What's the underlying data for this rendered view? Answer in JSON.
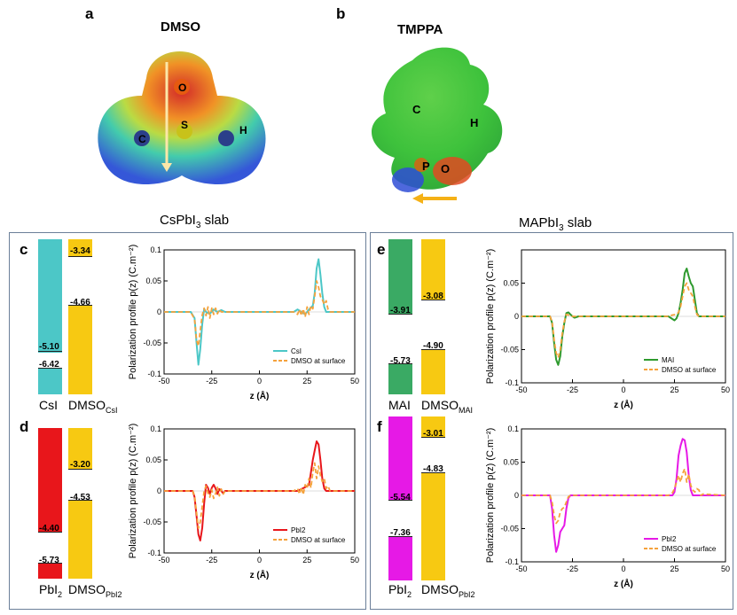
{
  "molecules": {
    "a": {
      "letter": "a",
      "title": "DMSO",
      "atoms": [
        "O",
        "S",
        "C",
        "H"
      ]
    },
    "b": {
      "letter": "b",
      "title": "TMPPA",
      "atoms": [
        "C",
        "H",
        "P",
        "O"
      ]
    }
  },
  "slabs": {
    "left": {
      "title_main": "CsPbI",
      "title_sub": "3",
      "title_tail": " slab"
    },
    "right": {
      "title_main": "MAPbI",
      "title_sub": "3",
      "title_tail": " slab"
    }
  },
  "colors": {
    "csi": "#4cc7c7",
    "dmso": "#f7c912",
    "pbi2_red": "#e8161b",
    "mai": "#3aaa64",
    "pbi2_magenta": "#e619e6",
    "frame": "#6b7f99",
    "orange_dash": "#f5a23c"
  },
  "panels": [
    {
      "letter": "c",
      "bars": {
        "left_label": "CsI",
        "right_label": "DMSO",
        "right_sub": "CsI",
        "left_values": [
          "-5.10",
          "-6.42"
        ],
        "right_values": [
          "-3.34",
          "-4.66"
        ]
      },
      "legend": [
        "CsI",
        "DMSO at surface"
      ]
    },
    {
      "letter": "d",
      "bars": {
        "left_label": "PbI",
        "left_sub": "2",
        "right_label": "DMSO",
        "right_sub": "PbI2",
        "left_values": [
          "-4.40",
          "-5.73"
        ],
        "right_values": [
          "-3.20",
          "-4.53"
        ]
      },
      "legend": [
        "PbI2",
        "DMSO at surface"
      ]
    },
    {
      "letter": "e",
      "bars": {
        "left_label": "MAI",
        "right_label": "DMSO",
        "right_sub": "MAI",
        "left_values": [
          "-3.91",
          "-5.73"
        ],
        "right_values": [
          "-3.08",
          "-4.90"
        ]
      },
      "legend": [
        "MAI",
        "DMSO at surface"
      ]
    },
    {
      "letter": "f",
      "bars": {
        "left_label": "PbI",
        "left_sub": "2",
        "right_label": "DMSO",
        "right_sub": "PbI2",
        "left_values": [
          "-5.54",
          "-7.36"
        ],
        "right_values": [
          "-3.01",
          "-4.83"
        ]
      },
      "legend": [
        "PbI2",
        "DMSO at surface"
      ]
    }
  ],
  "chart_data": [
    {
      "id": "c",
      "type": "line",
      "xlabel": "z (Å)",
      "ylabel": "Polarization profile p(z) (C.m⁻²)",
      "xlim": [
        -50,
        50
      ],
      "ylim": [
        -0.1,
        0.1
      ],
      "xticks": [
        "-50",
        "-25",
        "0",
        "25",
        "50"
      ],
      "yticks": [
        "0.1",
        "0.05",
        "0",
        "-0.05",
        "-0.1"
      ],
      "series": [
        {
          "name": "CsI",
          "color": "#4cc7c7",
          "x": [
            -50,
            -36,
            -34,
            -33,
            -32,
            -31,
            -30,
            -29,
            -28,
            -26,
            -24,
            -22,
            -20,
            -18,
            0,
            18,
            20,
            22,
            24,
            26,
            28,
            29,
            30,
            31,
            32,
            33,
            34,
            35,
            36,
            50
          ],
          "y": [
            0,
            0,
            -0.01,
            -0.05,
            -0.085,
            -0.06,
            -0.02,
            0.005,
            0,
            -0.003,
            0.004,
            0,
            0.003,
            0,
            0,
            0,
            0.004,
            0,
            -0.004,
            0.004,
            0.01,
            0.03,
            0.07,
            0.085,
            0.06,
            0.03,
            0.008,
            0,
            0,
            0
          ]
        },
        {
          "name": "DMSO at surface",
          "color": "#f5a23c",
          "x": [
            -50,
            -36,
            -34,
            -33,
            -32,
            -31,
            -30,
            -29,
            -28,
            -27,
            -26,
            -25,
            -24,
            -23,
            -22,
            -21,
            -20,
            -18,
            0,
            18,
            20,
            21,
            22,
            23,
            24,
            25,
            26,
            27,
            28,
            29,
            30,
            31,
            32,
            33,
            34,
            35,
            36,
            37,
            50
          ],
          "y": [
            0,
            0,
            -0.012,
            -0.045,
            -0.055,
            -0.03,
            -0.005,
            0.006,
            -0.006,
            0.008,
            -0.01,
            0.006,
            -0.004,
            0.006,
            -0.003,
            0.004,
            0,
            0,
            0,
            0,
            -0.004,
            0.004,
            -0.006,
            0.005,
            -0.008,
            0.008,
            -0.004,
            0.01,
            0.005,
            0.025,
            0.05,
            0.04,
            0.025,
            0.02,
            0.012,
            0.018,
            0.004,
            0,
            0
          ]
        }
      ]
    },
    {
      "id": "d",
      "type": "line",
      "xlabel": "z (Å)",
      "ylabel": "Polarization profile p(z) (C.m⁻²)",
      "xlim": [
        -50,
        50
      ],
      "ylim": [
        -0.1,
        0.1
      ],
      "xticks": [
        "-50",
        "-25",
        "0",
        "25",
        "50"
      ],
      "yticks": [
        "0.1",
        "0.05",
        "0",
        "-0.05",
        "-0.1"
      ],
      "series": [
        {
          "name": "PbI2",
          "color": "#e8161b",
          "x": [
            -50,
            -35,
            -34,
            -33,
            -32,
            -31,
            -30,
            -29,
            -28,
            -27,
            -26,
            -25,
            -24,
            -23,
            -22,
            -21,
            -20,
            -19,
            -18,
            0,
            20,
            22,
            24,
            26,
            27,
            28,
            29,
            30,
            31,
            32,
            33,
            34,
            35,
            50
          ],
          "y": [
            0,
            0,
            -0.01,
            -0.04,
            -0.07,
            -0.08,
            -0.06,
            -0.02,
            0.01,
            0.005,
            -0.005,
            0.005,
            0.01,
            0.004,
            -0.005,
            0.003,
            0,
            -0.004,
            0,
            0,
            0,
            0.003,
            0.006,
            0.01,
            0.03,
            0.05,
            0.065,
            0.08,
            0.075,
            0.05,
            0.02,
            0.004,
            0,
            0
          ]
        },
        {
          "name": "DMSO at surface",
          "color": "#f5a23c",
          "x": [
            -50,
            -35,
            -34,
            -33,
            -32,
            -31,
            -30,
            -29,
            -28,
            -27,
            -26,
            -25,
            -24,
            -23,
            -22,
            -21,
            -20,
            -19,
            -18,
            0,
            18,
            20,
            21,
            22,
            23,
            24,
            25,
            26,
            27,
            28,
            29,
            30,
            31,
            32,
            33,
            34,
            35,
            36,
            37,
            50
          ],
          "y": [
            0,
            0,
            -0.008,
            -0.035,
            -0.06,
            -0.05,
            -0.025,
            0,
            0.008,
            -0.004,
            -0.01,
            0.002,
            -0.012,
            -0.004,
            0.006,
            -0.008,
            0.003,
            -0.005,
            0,
            0,
            0,
            0.004,
            -0.005,
            0.006,
            -0.006,
            0.01,
            0.004,
            0.02,
            0.005,
            0.03,
            0.045,
            0.02,
            0.04,
            0.025,
            0.015,
            0.02,
            0.004,
            0.008,
            0,
            0
          ]
        }
      ]
    },
    {
      "id": "e",
      "type": "line",
      "xlabel": "z (Å)",
      "ylabel": "Polarization profile p(z) (C.m⁻²)",
      "xlim": [
        -50,
        50
      ],
      "ylim": [
        -0.1,
        0.1
      ],
      "xticks": [
        "-50",
        "-25",
        "0",
        "25",
        "50"
      ],
      "yticks": [
        "0.05",
        "0",
        "-0.05",
        "-0.1"
      ],
      "series": [
        {
          "name": "MAI",
          "color": "#2e9a2e",
          "x": [
            -50,
            -36,
            -35,
            -34,
            -33,
            -32,
            -31,
            -30,
            -29,
            -28,
            -27,
            -26,
            -25,
            -24,
            -22,
            0,
            22,
            24,
            25,
            26,
            27,
            28,
            29,
            30,
            31,
            32,
            33,
            34,
            35,
            36,
            37,
            50
          ],
          "y": [
            0,
            0,
            -0.01,
            -0.04,
            -0.065,
            -0.073,
            -0.06,
            -0.03,
            -0.01,
            0.005,
            0.006,
            0.003,
            0,
            -0.002,
            0,
            0,
            0,
            -0.004,
            -0.006,
            -0.003,
            0.005,
            0.02,
            0.04,
            0.065,
            0.072,
            0.06,
            0.05,
            0.045,
            0.025,
            0.005,
            0,
            0
          ]
        },
        {
          "name": "DMSO at surface",
          "color": "#f5a23c",
          "x": [
            -50,
            -36,
            -35,
            -34,
            -33,
            -32,
            -31,
            -30,
            -29,
            -28,
            -27,
            -26,
            -25,
            -24,
            -22,
            0,
            22,
            24,
            26,
            27,
            28,
            29,
            30,
            31,
            32,
            33,
            34,
            35,
            36,
            37,
            50
          ],
          "y": [
            0,
            0,
            -0.008,
            -0.035,
            -0.055,
            -0.062,
            -0.05,
            -0.025,
            -0.008,
            0.003,
            0.002,
            0.002,
            0,
            0,
            0,
            0,
            0,
            0.002,
            0.003,
            0.006,
            0.015,
            0.03,
            0.045,
            0.05,
            0.04,
            0.035,
            0.03,
            0.015,
            0.003,
            0,
            0
          ]
        }
      ]
    },
    {
      "id": "f",
      "type": "line",
      "xlabel": "z (Å)",
      "ylabel": "Polarization profile p(z) (C.m⁻²)",
      "xlim": [
        -50,
        50
      ],
      "ylim": [
        -0.1,
        0.1
      ],
      "xticks": [
        "-50",
        "-25",
        "0",
        "25",
        "50"
      ],
      "yticks": [
        "0.1",
        "0.05",
        "0",
        "-0.05",
        "-0.1"
      ],
      "series": [
        {
          "name": "PbI2",
          "color": "#e619e6",
          "x": [
            -50,
            -36,
            -35,
            -34,
            -33,
            -32,
            -31,
            -30,
            -29,
            -28,
            -27,
            -26,
            -24,
            0,
            24,
            25,
            26,
            27,
            28,
            29,
            30,
            31,
            32,
            33,
            34,
            35,
            50
          ],
          "y": [
            0,
            0,
            -0.02,
            -0.06,
            -0.085,
            -0.075,
            -0.055,
            -0.05,
            -0.045,
            -0.02,
            -0.004,
            0,
            0,
            0,
            0,
            0.005,
            0.025,
            0.06,
            0.075,
            0.085,
            0.083,
            0.065,
            0.03,
            0.008,
            0,
            0,
            0
          ]
        },
        {
          "name": "DMSO at surface",
          "color": "#f5a23c",
          "x": [
            -50,
            -36,
            -35,
            -34,
            -33,
            -32,
            -31,
            -30,
            -29,
            -28,
            -27,
            -26,
            -24,
            0,
            22,
            24,
            25,
            26,
            27,
            28,
            29,
            30,
            31,
            32,
            33,
            34,
            35,
            36,
            37,
            38,
            39,
            50
          ],
          "y": [
            0,
            0,
            -0.01,
            -0.03,
            -0.042,
            -0.038,
            -0.025,
            -0.02,
            -0.018,
            -0.01,
            -0.002,
            0,
            0,
            0,
            0,
            0.004,
            0.01,
            0.02,
            0.03,
            0.02,
            0.033,
            0.04,
            0.02,
            0.032,
            0.015,
            0.008,
            0.005,
            0.01,
            0.008,
            0,
            0.002,
            0
          ]
        }
      ]
    }
  ]
}
